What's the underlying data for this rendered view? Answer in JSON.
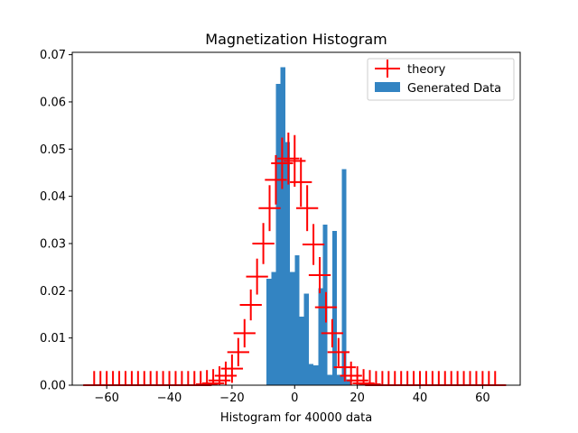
{
  "chart_data": {
    "type": "bar",
    "title": "Magnetization Histogram",
    "xlabel": "Histogram for 40000 data",
    "ylabel": "",
    "xlim": [
      -71,
      72
    ],
    "ylim": [
      0,
      0.0705
    ],
    "xticks": [
      -60,
      -40,
      -20,
      0,
      20,
      40,
      60
    ],
    "xtick_labels": [
      "−60",
      "−40",
      "−20",
      "0",
      "20",
      "40",
      "60"
    ],
    "yticks": [
      0.0,
      0.01,
      0.02,
      0.03,
      0.04,
      0.05,
      0.06,
      0.07
    ],
    "ytick_labels": [
      "0.00",
      "0.01",
      "0.02",
      "0.03",
      "0.04",
      "0.05",
      "0.06",
      "0.07"
    ],
    "grid": false,
    "legend_position": "top-right",
    "colors": {
      "histogram": "#3384c2",
      "theory": "#ff0000"
    },
    "series": [
      {
        "name": "Generated Data",
        "type": "histogram",
        "bin_edges": [
          -9,
          -7.5,
          -6,
          -4.5,
          -3,
          -1.5,
          0,
          1.5,
          3,
          4.5,
          6,
          7.5,
          9,
          10.5,
          12,
          13.5,
          15,
          16.5,
          18,
          19.5,
          21,
          22.5,
          24,
          25.5,
          27,
          28.5
        ],
        "values": [
          0.0225,
          0.024,
          0.0638,
          0.0673,
          0.0515,
          0.024,
          0.0275,
          0.0145,
          0.0194,
          0.0045,
          0.0042,
          0.0205,
          0.034,
          0.0022,
          0.0327,
          0.0022,
          0.0458,
          0.0012,
          0.0,
          0.0,
          0.0,
          0.0,
          0.0,
          0.0,
          0.0
        ]
      },
      {
        "name": "theory",
        "type": "errorbar",
        "x": [
          -64,
          -62,
          -60,
          -58,
          -56,
          -54,
          -52,
          -50,
          -48,
          -46,
          -44,
          -42,
          -40,
          -38,
          -36,
          -34,
          -32,
          -30,
          -28,
          -26,
          -24,
          -22,
          -20,
          -18,
          -16,
          -14,
          -12,
          -10,
          -8,
          -6,
          -4,
          -2,
          0,
          2,
          4,
          6,
          8,
          10,
          12,
          14,
          16,
          18,
          20,
          22,
          24,
          26,
          28,
          30,
          32,
          34,
          36,
          38,
          40,
          42,
          44,
          46,
          48,
          50,
          52,
          54,
          56,
          58,
          60,
          62,
          64
        ],
        "y": [
          0.0,
          0.0,
          0.0,
          0.0,
          0.0,
          0.0,
          0.0,
          0.0,
          0.0,
          0.0,
          0.0,
          0.0,
          0.0,
          0.0,
          0.0,
          0.0,
          0.0,
          0.0,
          0.0002,
          0.0004,
          0.001,
          0.002,
          0.0035,
          0.007,
          0.011,
          0.017,
          0.023,
          0.03,
          0.0375,
          0.0435,
          0.047,
          0.048,
          0.0475,
          0.043,
          0.0375,
          0.0298,
          0.0233,
          0.0165,
          0.011,
          0.007,
          0.0038,
          0.002,
          0.001,
          0.0004,
          0.0002,
          0.0,
          0.0,
          0.0,
          0.0,
          0.0,
          0.0,
          0.0,
          0.0,
          0.0,
          0.0,
          0.0,
          0.0,
          0.0,
          0.0,
          0.0,
          0.0,
          0.0,
          0.0,
          0.0,
          0.0
        ],
        "xerr": 3.5,
        "yerr_max": 0.0055,
        "yerr_min": 0.003
      }
    ]
  }
}
